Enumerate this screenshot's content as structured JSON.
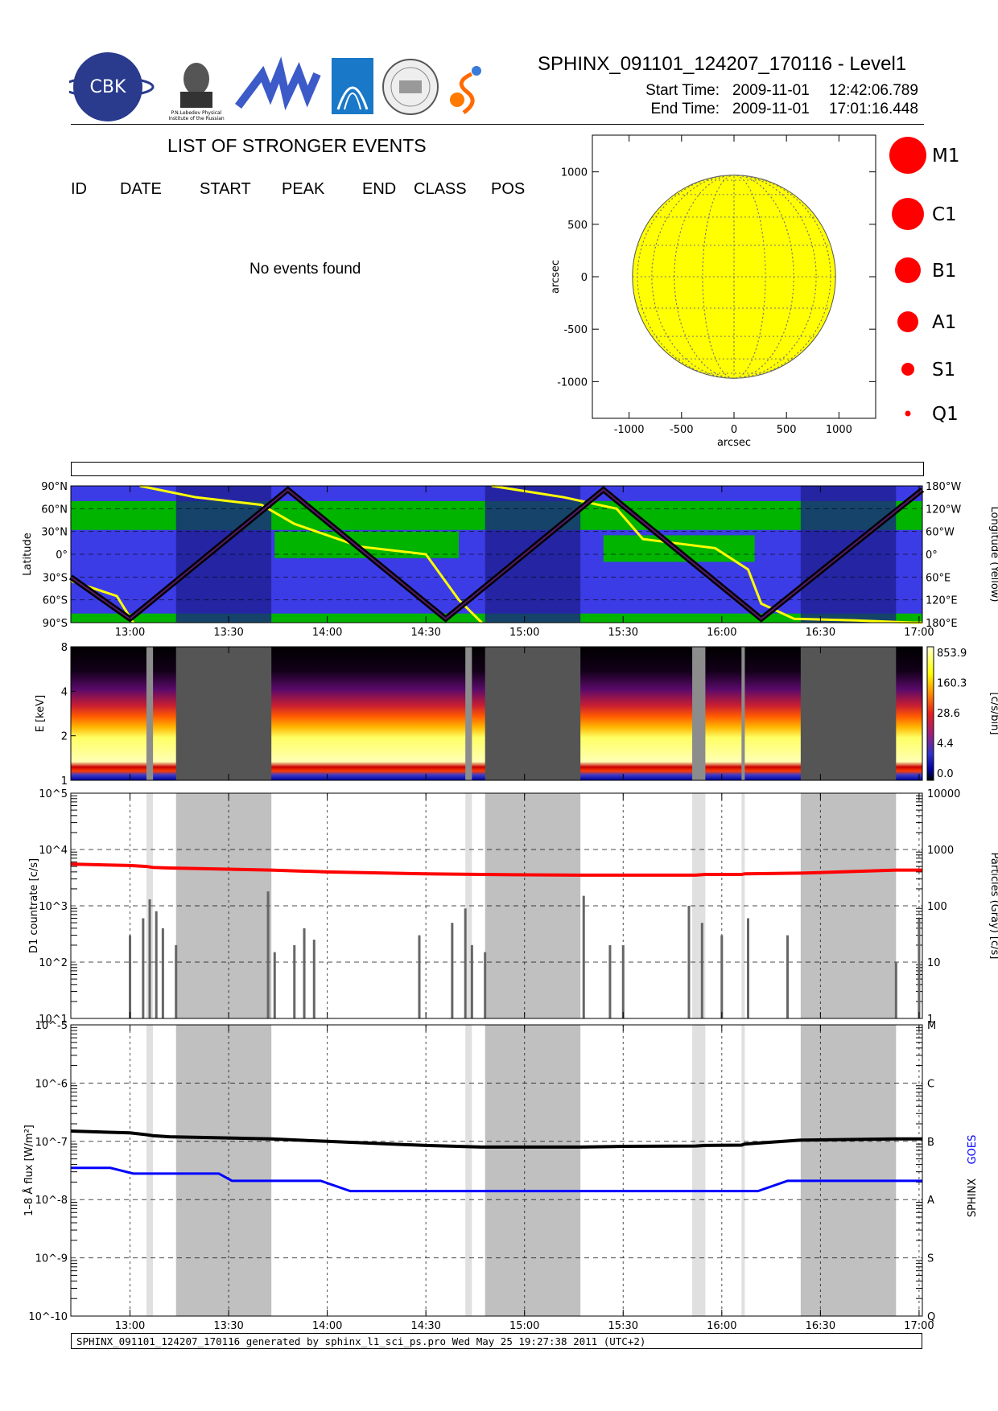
{
  "header": {
    "title": "SPHINX_091101_124207_170116 - Level1",
    "start_label": "Start Time:",
    "start_date": "2009-11-01",
    "start_time": "12:42:06.789",
    "end_label": "End Time:",
    "end_date": "2009-11-01",
    "end_time": "17:01:16.448",
    "logos": [
      "CBK",
      "P.N.Lebedev Physical Institute of the Russian Academy of Science",
      "MIFI",
      "institute-logo",
      "seal-logo",
      "sphinx-logo"
    ],
    "logo_texts": {
      "cbk": "CBK",
      "lebedev": "P.N.Lebedev Physical Institute of the Russian Academy of Science"
    }
  },
  "events": {
    "title": "LIST OF STRONGER EVENTS",
    "columns": [
      "ID",
      "DATE",
      "START",
      "PEAK",
      "END",
      "CLASS",
      "POS"
    ],
    "empty_text": "No events found"
  },
  "legend": {
    "classes": [
      {
        "label": "M1",
        "size": 6
      },
      {
        "label": "C1",
        "size": 5
      },
      {
        "label": "B1",
        "size": 4
      },
      {
        "label": "A1",
        "size": 3
      },
      {
        "label": "S1",
        "size": 2
      },
      {
        "label": "Q1",
        "size": 1
      }
    ],
    "color": "#ff0000"
  },
  "footer": {
    "text": "SPHINX_091101_124207_170116 generated by sphinx_l1_sci_ps.pro Wed May 25 19:27:38 2011 (UTC+2)"
  },
  "chart_data": [
    {
      "type": "scatter",
      "name": "solar-disk-map",
      "xlabel": "arcsec",
      "ylabel": "arcsec",
      "xlim": [
        -1350,
        1350
      ],
      "ylim": [
        -1350,
        1350
      ],
      "xticks": [
        "-1000",
        "-500",
        "0",
        "500",
        "1000"
      ],
      "yticks": [
        "1000",
        "500",
        "0",
        "-500",
        "-1000"
      ],
      "disk_radius": 968,
      "disk_color": "#ffff00",
      "events": []
    },
    {
      "type": "line",
      "name": "orbit-map",
      "ylabel": "Latitude",
      "ylabel_right": "Longitude (Yellow)",
      "xlim": [
        "12:42",
        "17:01"
      ],
      "xticks": [
        "13:00",
        "13:30",
        "14:00",
        "14:30",
        "15:00",
        "15:30",
        "16:00",
        "16:30",
        "17:00"
      ],
      "yticks_left": [
        "90°N",
        "60°N",
        "30°N",
        "0°",
        "30°S",
        "60°S",
        "90°S"
      ],
      "yticks_right": [
        "180°W",
        "120°W",
        "60°W",
        "0°",
        "60°E",
        "120°E",
        "180°E"
      ],
      "latitude_track": {
        "x": [
          "12:42",
          "13:00",
          "13:48",
          "14:36",
          "15:24",
          "16:12",
          "17:01"
        ],
        "y": [
          -30,
          -85,
          85,
          -85,
          85,
          -85,
          85
        ]
      },
      "longitude_track": {
        "x": [
          "12:42",
          "12:56",
          "13:01",
          "13:03",
          "13:20",
          "13:40",
          "13:50",
          "14:10",
          "14:30",
          "14:40",
          "14:47",
          "14:50",
          "15:12",
          "15:28",
          "15:36",
          "15:58",
          "16:08",
          "16:12",
          "16:22",
          "16:40",
          "16:58",
          "17:01"
        ],
        "y": [
          -35,
          -55,
          -90,
          90,
          75,
          65,
          40,
          10,
          0,
          -60,
          -90,
          90,
          75,
          60,
          20,
          8,
          -20,
          -65,
          -85,
          -87,
          -90,
          -90
        ]
      },
      "night_intervals": [
        [
          "13:14",
          "13:43"
        ],
        [
          "14:48",
          "15:17"
        ],
        [
          "16:24",
          "16:53"
        ]
      ],
      "colors": {
        "background": "#3c3ce6",
        "saa": "#00b400",
        "night": "#1e1e8c",
        "track": "#ffff00"
      }
    },
    {
      "type": "heatmap",
      "name": "spectrogram",
      "ylabel": "E [keV]",
      "ylim": [
        1,
        8
      ],
      "yticks": [
        "8",
        "4",
        "2",
        "1"
      ],
      "colorbar": {
        "label": "[c/s/bin]",
        "ticks": [
          "853.9",
          "160.3",
          "28.6",
          "4.4",
          "0.0"
        ]
      },
      "gaps": [
        [
          "13:05",
          "13:07"
        ],
        [
          "13:14",
          "13:43"
        ],
        [
          "14:42",
          "14:44"
        ],
        [
          "14:48",
          "15:17"
        ],
        [
          "15:51",
          "15:55"
        ],
        [
          "16:06",
          "16:07"
        ],
        [
          "16:24",
          "16:53"
        ]
      ]
    },
    {
      "type": "line",
      "name": "d1-countrate",
      "ylabel": "D1 countrate [c/s]",
      "ylabel_right": "Particles (Gray) [c/s]",
      "yscale": "log",
      "ylim": [
        10,
        100000
      ],
      "yticks_left": [
        "10^5",
        "10^4",
        "10^3",
        "10^2",
        "10^1"
      ],
      "yticks_right": [
        "10000",
        "1000",
        "100",
        "10",
        "1"
      ],
      "series": [
        {
          "name": "SphinX D1",
          "color": "#ff0000",
          "x": [
            "12:42",
            "13:00",
            "13:05",
            "13:07",
            "13:12",
            "13:43",
            "14:00",
            "14:30",
            "14:47",
            "15:17",
            "15:30",
            "15:52",
            "15:55",
            "16:06",
            "16:07",
            "16:24",
            "16:53",
            "17:01"
          ],
          "y": [
            5500,
            5200,
            5000,
            4800,
            4700,
            4300,
            4000,
            3700,
            3600,
            3500,
            3500,
            3500,
            3600,
            3600,
            3700,
            3800,
            4300,
            4300
          ]
        },
        {
          "name": "Particles",
          "color": "#666666",
          "x": [
            "13:00",
            "13:04",
            "13:06",
            "13:08",
            "13:10",
            "13:14",
            "13:42",
            "13:44",
            "13:50",
            "13:53",
            "13:56",
            "14:28",
            "14:38",
            "14:42",
            "14:44",
            "14:48",
            "15:18",
            "15:26",
            "15:30",
            "15:50",
            "15:54",
            "16:00",
            "16:08",
            "16:20",
            "16:53",
            "17:00"
          ],
          "y": [
            30,
            60,
            130,
            80,
            40,
            20,
            180,
            15,
            20,
            40,
            25,
            30,
            50,
            90,
            20,
            15,
            150,
            20,
            20,
            100,
            50,
            30,
            60,
            30,
            10,
            60
          ]
        }
      ]
    },
    {
      "type": "line",
      "name": "flux-1-8",
      "ylabel": "1–8 Å flux [W/m²]",
      "ylabel_right": [
        "SPHINX",
        "GOES"
      ],
      "yscale": "log",
      "ylim": [
        1e-10,
        1e-05
      ],
      "yticks_left": [
        "10^-5",
        "10^-6",
        "10^-7",
        "10^-8",
        "10^-9",
        "10^-10"
      ],
      "yticks_right": [
        "M",
        "C",
        "B",
        "A",
        "S",
        "Q"
      ],
      "series": [
        {
          "name": "SPHINX",
          "color": "#000000",
          "x": [
            "12:42",
            "13:00",
            "13:05",
            "13:07",
            "13:12",
            "13:43",
            "14:00",
            "14:30",
            "14:47",
            "15:17",
            "15:30",
            "15:52",
            "15:55",
            "16:06",
            "16:07",
            "16:24",
            "16:53",
            "17:01"
          ],
          "y": [
            1.5e-07,
            1.4e-07,
            1.3e-07,
            1.25e-07,
            1.2e-07,
            1.1e-07,
            1e-07,
            8.5e-08,
            8e-08,
            8e-08,
            8.2e-08,
            8.3e-08,
            8.5e-08,
            8.6e-08,
            9e-08,
            1.05e-07,
            1.1e-07,
            1.1e-07
          ]
        },
        {
          "name": "GOES",
          "color": "#0000ff",
          "x": [
            "12:42",
            "12:54",
            "13:01",
            "13:27",
            "13:31",
            "13:58",
            "14:07",
            "16:11",
            "16:20",
            "17:01"
          ],
          "y": [
            3.5e-08,
            3.5e-08,
            2.8e-08,
            2.8e-08,
            2.1e-08,
            2.1e-08,
            1.4e-08,
            1.4e-08,
            2.1e-08,
            2.1e-08
          ]
        }
      ]
    }
  ]
}
